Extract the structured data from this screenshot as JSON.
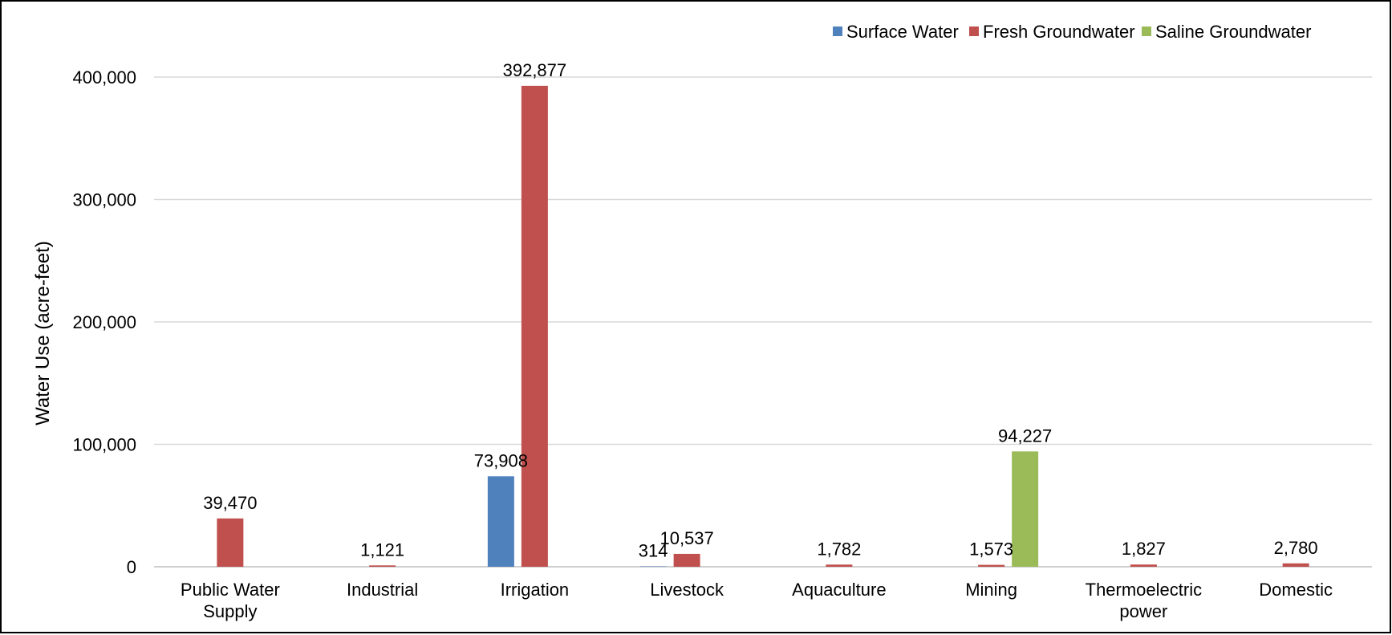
{
  "chart_data": {
    "type": "bar",
    "title": "",
    "xlabel": "",
    "ylabel": "Water Use (acre-feet)",
    "ylim": [
      0,
      400000
    ],
    "yticks": [
      0,
      100000,
      200000,
      300000,
      400000
    ],
    "ytick_labels": [
      "0",
      "100,000",
      "200,000",
      "300,000",
      "400,000"
    ],
    "grid": true,
    "legend_position": "top-right",
    "categories": [
      [
        "Public Water",
        "Supply"
      ],
      [
        "Industrial"
      ],
      [
        "Irrigation"
      ],
      [
        "Livestock"
      ],
      [
        "Aquaculture"
      ],
      [
        "Mining"
      ],
      [
        "Thermoelectric",
        "power"
      ],
      [
        "Domestic"
      ]
    ],
    "series": [
      {
        "name": "Surface Water",
        "color": "#4F81BD",
        "values": [
          null,
          null,
          73908,
          314,
          null,
          null,
          null,
          null
        ],
        "labels": [
          null,
          null,
          "73,908",
          "314",
          null,
          null,
          null,
          null
        ]
      },
      {
        "name": "Fresh Groundwater",
        "color": "#C0504D",
        "values": [
          39470,
          1121,
          392877,
          10537,
          1782,
          1573,
          1827,
          2780
        ],
        "labels": [
          "39,470",
          "1,121",
          "392,877",
          "10,537",
          "1,782",
          "1,573",
          "1,827",
          "2,780"
        ]
      },
      {
        "name": "Saline Groundwater",
        "color": "#9BBB59",
        "values": [
          null,
          null,
          null,
          null,
          null,
          94227,
          null,
          null
        ],
        "labels": [
          null,
          null,
          null,
          null,
          null,
          "94,227",
          null,
          null
        ]
      }
    ]
  }
}
